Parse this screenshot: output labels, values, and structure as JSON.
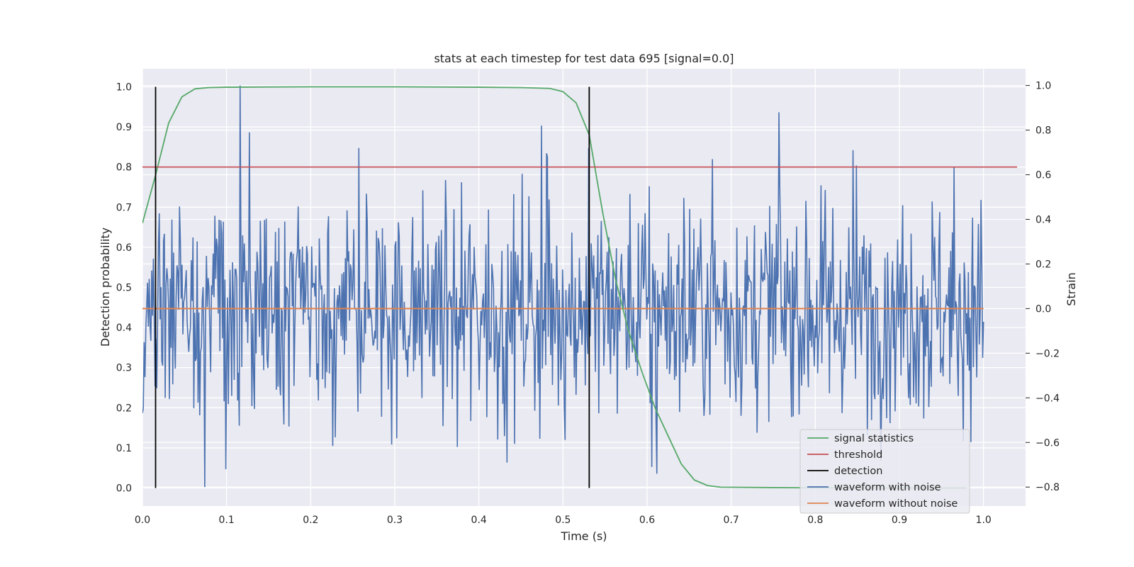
{
  "chart_data": {
    "type": "line",
    "title": "stats at each timestep for test data 695 [signal=0.0]",
    "xlabel": "Time (s)",
    "ylabel_left": "Detection probability",
    "ylabel_right": "Strain",
    "xlim": [
      0.0,
      1.05
    ],
    "ylim_left": [
      -0.045,
      1.045
    ],
    "ylim_right": [
      -0.885,
      1.075
    ],
    "x_ticks": [
      "0.0",
      "0.1",
      "0.2",
      "0.3",
      "0.4",
      "0.5",
      "0.6",
      "0.7",
      "0.8",
      "0.9",
      "1.0"
    ],
    "y_ticks_left": [
      "0.0",
      "0.1",
      "0.2",
      "0.3",
      "0.4",
      "0.5",
      "0.6",
      "0.7",
      "0.8",
      "0.9",
      "1.0"
    ],
    "y_ticks_right": [
      "−0.8",
      "−0.6",
      "−0.4",
      "−0.2",
      "0.0",
      "0.2",
      "0.4",
      "0.6",
      "0.8",
      "1.0"
    ],
    "grid": true,
    "legend_position": "lower-right",
    "colors": {
      "signal_statistics": "#55a868",
      "threshold": "#c44e52",
      "detection": "#000000",
      "waveform_with_noise": "#4c72b0",
      "waveform_without_noise": "#dd8452",
      "background": "#eaeaf2"
    },
    "series": [
      {
        "name": "signal statistics",
        "axis": "left",
        "x": [
          0.0,
          0.0156,
          0.0312,
          0.0469,
          0.0625,
          0.0781,
          0.1,
          0.2,
          0.3,
          0.4,
          0.45,
          0.4844,
          0.5,
          0.5156,
          0.5312,
          0.5469,
          0.5625,
          0.5781,
          0.5938,
          0.6094,
          0.625,
          0.6406,
          0.6562,
          0.6719,
          0.6875,
          0.75,
          0.85,
          0.9,
          0.98
        ],
        "values": [
          0.66,
          0.78,
          0.91,
          0.975,
          0.995,
          0.998,
          0.999,
          1.0,
          1.0,
          0.999,
          0.998,
          0.996,
          0.988,
          0.96,
          0.88,
          0.69,
          0.52,
          0.39,
          0.29,
          0.2,
          0.13,
          0.06,
          0.02,
          0.006,
          0.002,
          0.001,
          0.0,
          0.0,
          0.0
        ]
      },
      {
        "name": "threshold",
        "axis": "left",
        "x": [
          0.0,
          1.04
        ],
        "values": [
          0.8,
          0.8
        ]
      },
      {
        "name": "detection",
        "axis": "left",
        "type": "vlines",
        "x": [
          0.0156,
          0.5312
        ],
        "ymin": 0.0,
        "ymax": 1.0
      },
      {
        "name": "waveform with noise",
        "axis": "right",
        "n_points": 1000,
        "x_range": [
          0.0,
          1.0
        ],
        "generator": "pseudo-random noise",
        "std": 0.25,
        "seed": 695,
        "peaks": [
          {
            "x": 0.116,
            "value": 1.0
          },
          {
            "x": 0.127,
            "value": 0.79
          },
          {
            "x": 0.257,
            "value": 0.72
          },
          {
            "x": 0.474,
            "value": 0.82
          },
          {
            "x": 0.481,
            "value": 0.68
          },
          {
            "x": 0.531,
            "value": 0.72
          },
          {
            "x": 0.678,
            "value": 0.67
          },
          {
            "x": 0.757,
            "value": 0.88
          },
          {
            "x": 0.845,
            "value": 0.71
          },
          {
            "x": 0.074,
            "value": -0.8
          },
          {
            "x": 0.099,
            "value": -0.72
          },
          {
            "x": 0.374,
            "value": -0.62
          },
          {
            "x": 0.433,
            "value": -0.69
          },
          {
            "x": 0.606,
            "value": -0.71
          },
          {
            "x": 0.612,
            "value": -0.74
          }
        ]
      },
      {
        "name": "waveform without noise",
        "axis": "right",
        "x": [
          0.0,
          1.0
        ],
        "values": [
          0.0,
          0.0
        ]
      }
    ],
    "legend": [
      "signal statistics",
      "threshold",
      "detection",
      "waveform with noise",
      "waveform without noise"
    ]
  }
}
